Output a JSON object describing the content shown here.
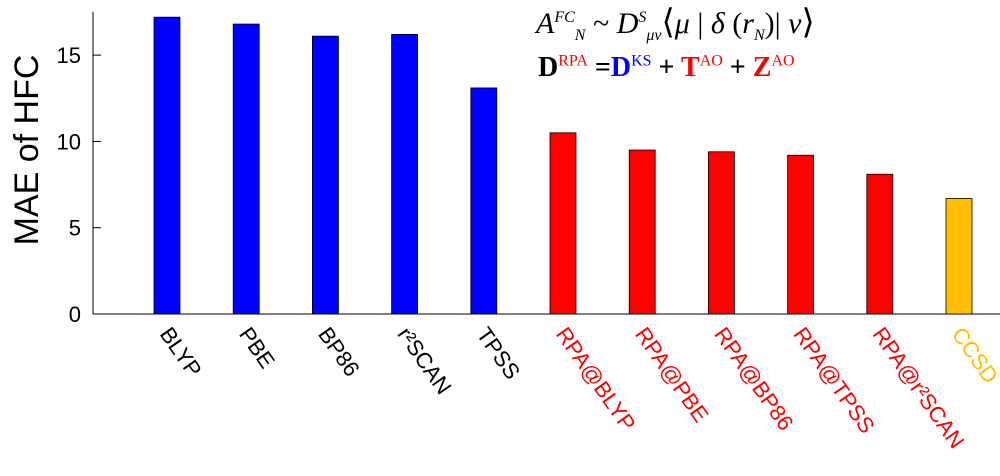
{
  "chart_data": {
    "type": "bar",
    "title": "",
    "xlabel": "",
    "ylabel": "MAE of HFC",
    "ylim": [
      0,
      17.5
    ],
    "yticks": [
      "0",
      "5",
      "10",
      "15"
    ],
    "yticks_values": [
      0,
      5,
      10,
      15
    ],
    "grid": false,
    "categories": [
      "BLYP",
      "PBE",
      "BP86",
      "r²SCAN",
      "TPSS",
      "RPA@BLYP",
      "RPA@PBE",
      "RPA@BP86",
      "RPA@TPSS",
      "RPA@r²SCAN",
      "CCSD"
    ],
    "values": [
      17.2,
      16.8,
      16.1,
      16.2,
      13.1,
      10.5,
      9.5,
      9.4,
      9.2,
      8.1,
      6.7
    ],
    "bar_colors": [
      "#0000ff",
      "#0000ff",
      "#0000ff",
      "#0000ff",
      "#0000ff",
      "#ff0000",
      "#ff0000",
      "#ff0000",
      "#ff0000",
      "#ff0000",
      "#ffbf00"
    ],
    "label_colors": [
      "#000000",
      "#000000",
      "#000000",
      "#000000",
      "#000000",
      "#ff0000",
      "#ff0000",
      "#ff0000",
      "#ff0000",
      "#ff0000",
      "#ffbf00"
    ]
  },
  "equations": {
    "eq1": {
      "A": "A",
      "A_sup": "FC",
      "A_sub": "N",
      "tilde": " ~ ",
      "D": "D",
      "D_sup": "S",
      "D_sub": "μν",
      "open": "⟨",
      "bra": "μ",
      "bar1": " | ",
      "delta": "δ",
      "lparen": " (",
      "r": "r",
      "r_sub": "N",
      "rparen": ")",
      "bar2": "| ",
      "ket": "ν",
      "close": "⟩"
    },
    "eq2": {
      "D_rpa": "D",
      "rpa_sup": "RPA",
      "eq": " =",
      "D_ks": "D",
      "ks_sup": "KS",
      "plus1": " + ",
      "T": "T",
      "t_sup": "AO",
      "plus2": " + ",
      "Z": "Z",
      "z_sup": "AO"
    }
  }
}
